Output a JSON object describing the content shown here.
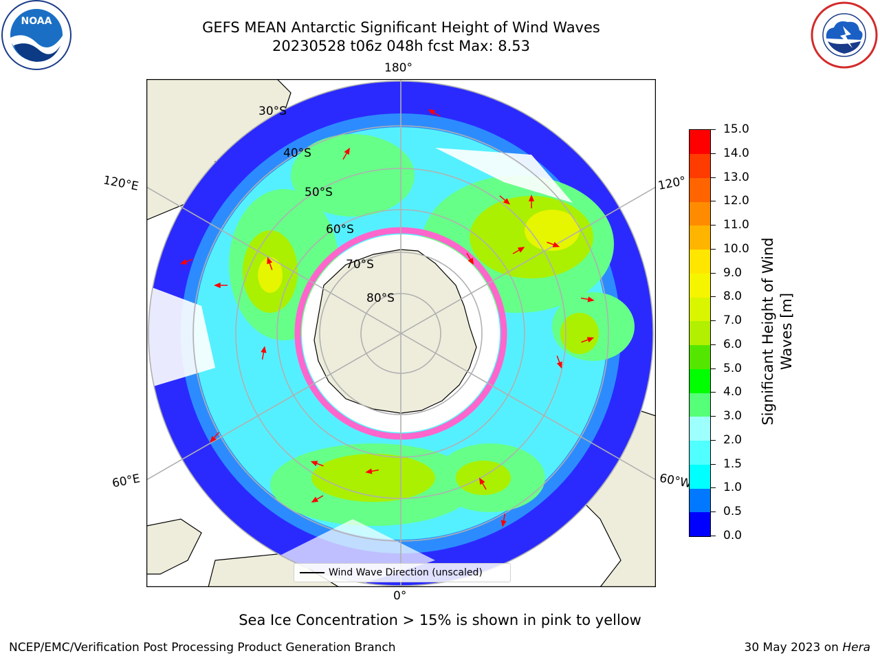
{
  "header": {
    "title_line1": "GEFS MEAN Antarctic Significant Height of Wind Waves",
    "title_line2": "20230528 t06z 048h fcst   Max: 8.53"
  },
  "logos": {
    "left": {
      "text": "NOAA",
      "icon": "noaa-logo-icon",
      "color": "#1a6fc4"
    },
    "right": {
      "text": "NATIONAL WEATHER SERVICE",
      "icon": "nws-logo-icon",
      "color": "#d42a2a"
    }
  },
  "map": {
    "projection": "south-polar-stereographic",
    "longitude_labels": {
      "top": "180°",
      "bottom": "0°",
      "left_upper": "120°E",
      "left_lower": "60°E",
      "right_upper": "120°",
      "right_lower": "60°W"
    },
    "latitude_labels": [
      "30°S",
      "40°S",
      "50°S",
      "60°S",
      "70°S",
      "80°S"
    ],
    "legend": {
      "label": "Wind Wave Direction (unscaled)"
    },
    "colors": {
      "land": "#eeeddc",
      "arrow": "#ff0000",
      "sea_ice": "#ff66cc",
      "gridline": "#b0b0b0"
    }
  },
  "colorbar": {
    "title_line1": "Significant Height of Wind",
    "title_line2": "Waves [m]",
    "tick_labels": [
      "0.0",
      "0.5",
      "1.0",
      "1.5",
      "2.0",
      "3.0",
      "4.0",
      "5.0",
      "6.0",
      "7.0",
      "8.0",
      "9.0",
      "10.0",
      "11.0",
      "12.0",
      "13.0",
      "14.0",
      "15.0"
    ],
    "colors": [
      "#0000ff",
      "#0078ff",
      "#00ffff",
      "#50ffff",
      "#9effff",
      "#55ff77",
      "#00ff00",
      "#55e600",
      "#b2ef00",
      "#d9f500",
      "#f5f500",
      "#ffe600",
      "#ffb400",
      "#ff8c00",
      "#ff6400",
      "#ff3c00",
      "#ff0000"
    ]
  },
  "chart_data": {
    "type": "heatmap",
    "title": "GEFS MEAN Antarctic Significant Height of Wind Waves",
    "subtitle": "20230528 t06z 048h fcst   Max: 8.53",
    "max_value": 8.53,
    "colorbar_label": "Significant Height of Wind Waves [m]",
    "colorbar_range": [
      0.0,
      15.0
    ]
  },
  "footer": {
    "note": "Sea Ice Concentration > 15% is shown in pink to yellow",
    "credit": "NCEP/EMC/Verification Post Processing Product Generation Branch",
    "date": "30 May 2023 on ",
    "machine": "Hera"
  }
}
